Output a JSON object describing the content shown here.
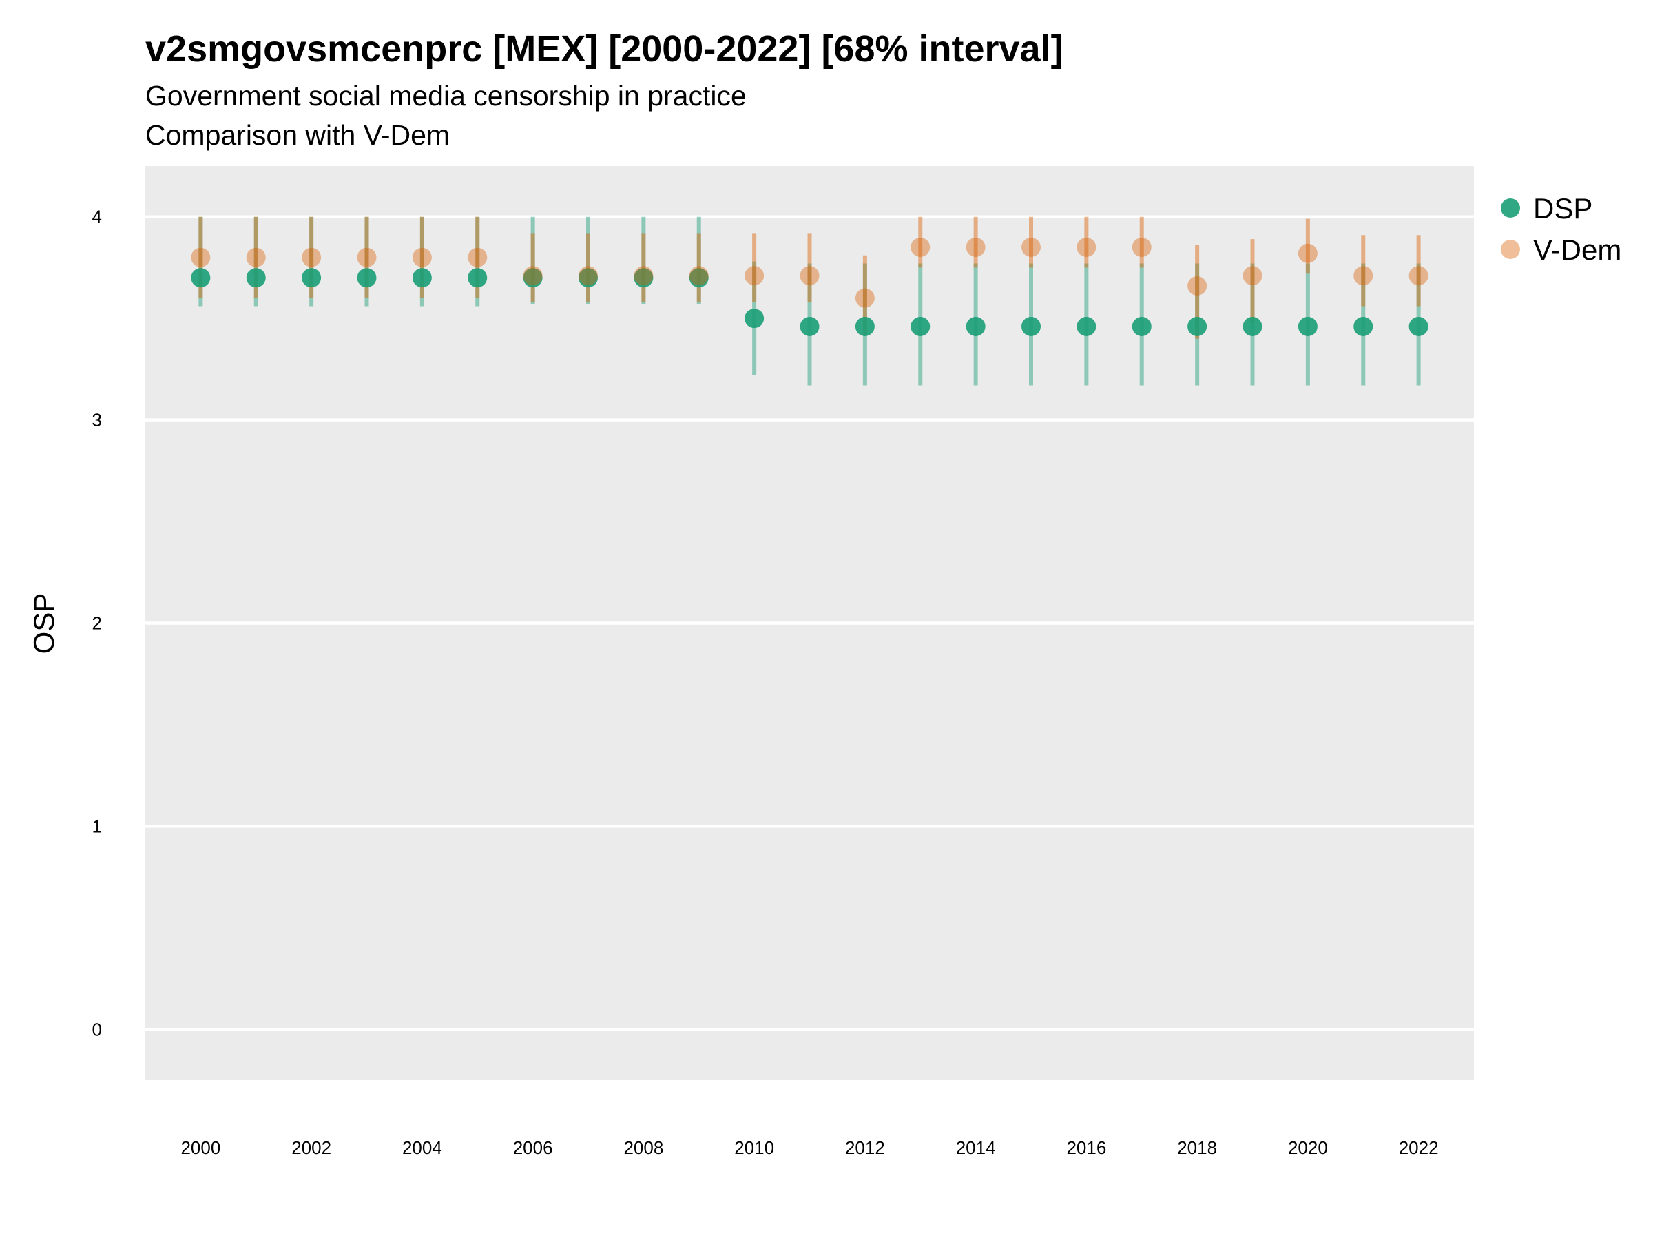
{
  "chart_data": {
    "type": "scatter",
    "title": "v2smgovsmcenprc [MEX] [2000-2022] [68% interval]",
    "subtitle": "Government social media censorship in practice",
    "subtitle2": "Comparison with V-Dem",
    "ylabel": "OSP",
    "xlabel": "",
    "ylim": [
      -0.25,
      4.25
    ],
    "xlim": [
      1999.0,
      2023.0
    ],
    "yticks": [
      0,
      1,
      2,
      3,
      4
    ],
    "xticks": [
      2000,
      2002,
      2004,
      2006,
      2008,
      2010,
      2012,
      2014,
      2016,
      2018,
      2020,
      2022
    ],
    "grid": true,
    "legend_position": "right",
    "x": [
      2000,
      2001,
      2002,
      2003,
      2004,
      2005,
      2006,
      2007,
      2008,
      2009,
      2010,
      2011,
      2012,
      2013,
      2014,
      2015,
      2016,
      2017,
      2018,
      2019,
      2020,
      2021,
      2022
    ],
    "series": [
      {
        "name": "DSP",
        "color": "#1b9e77",
        "values": [
          3.7,
          3.7,
          3.7,
          3.7,
          3.7,
          3.7,
          3.7,
          3.7,
          3.7,
          3.7,
          3.5,
          3.46,
          3.46,
          3.46,
          3.46,
          3.46,
          3.46,
          3.46,
          3.46,
          3.46,
          3.46,
          3.46,
          3.46
        ],
        "lower": [
          3.56,
          3.56,
          3.56,
          3.56,
          3.56,
          3.56,
          3.57,
          3.57,
          3.57,
          3.57,
          3.22,
          3.17,
          3.17,
          3.17,
          3.17,
          3.17,
          3.17,
          3.17,
          3.17,
          3.17,
          3.17,
          3.17,
          3.17
        ],
        "upper": [
          4.0,
          4.0,
          4.0,
          4.0,
          4.0,
          4.0,
          4.0,
          4.0,
          4.0,
          4.0,
          3.78,
          3.77,
          3.77,
          3.77,
          3.77,
          3.77,
          3.77,
          3.77,
          3.77,
          3.77,
          3.77,
          3.77,
          3.77
        ]
      },
      {
        "name": "V-Dem",
        "color": "#d95f02",
        "values": [
          3.8,
          3.8,
          3.8,
          3.8,
          3.8,
          3.8,
          3.71,
          3.71,
          3.71,
          3.71,
          3.71,
          3.71,
          3.6,
          3.85,
          3.85,
          3.85,
          3.85,
          3.85,
          3.66,
          3.71,
          3.82,
          3.71,
          3.71
        ],
        "lower": [
          3.6,
          3.6,
          3.6,
          3.6,
          3.6,
          3.6,
          3.58,
          3.58,
          3.58,
          3.58,
          3.58,
          3.58,
          3.42,
          3.75,
          3.75,
          3.75,
          3.75,
          3.75,
          3.4,
          3.48,
          3.72,
          3.56,
          3.56
        ],
        "upper": [
          4.0,
          4.0,
          4.0,
          4.0,
          4.0,
          4.0,
          3.92,
          3.92,
          3.92,
          3.92,
          3.92,
          3.92,
          3.81,
          4.0,
          4.0,
          4.0,
          4.0,
          4.0,
          3.86,
          3.89,
          3.99,
          3.91,
          3.91
        ]
      }
    ]
  }
}
